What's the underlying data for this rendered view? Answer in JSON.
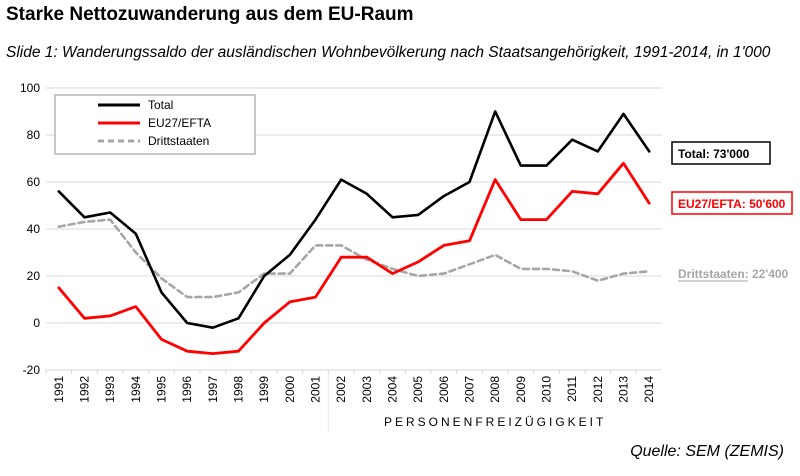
{
  "title": "Starke Nettozuwanderung aus dem EU-Raum",
  "subtitle": "Slide 1: Wanderungssaldo der ausländischen Wohnbevölkerung nach Staatsangehörigkeit, 1991-2014, in 1'000",
  "source": "Quelle: SEM (ZEMIS)",
  "colors": {
    "total": "#000000",
    "eu": "#ff0000",
    "dritt": "#a6a6a6",
    "grid": "#d9d9d9",
    "band": "#e6e6e6"
  },
  "chart_data": {
    "type": "line",
    "x": [
      "1991",
      "1992",
      "1993",
      "1994",
      "1995",
      "1996",
      "1997",
      "1998",
      "1999",
      "2000",
      "2001",
      "2002",
      "2003",
      "2004",
      "2005",
      "2006",
      "2007",
      "2008",
      "2009",
      "2010",
      "2011",
      "2012",
      "2013",
      "2014"
    ],
    "ylim": [
      -20,
      100
    ],
    "yticks": [
      "-20",
      "0",
      "20",
      "40",
      "60",
      "80",
      "100"
    ],
    "grid": true,
    "legend_placement": "top-left",
    "series": [
      {
        "name": "Total",
        "style": "solid",
        "values": [
          56,
          45,
          47,
          38,
          13,
          0,
          -2,
          2,
          20,
          29,
          44,
          61,
          55,
          45,
          46,
          54,
          60,
          90,
          67,
          67,
          78,
          73,
          89,
          73
        ]
      },
      {
        "name": "EU27/EFTA",
        "style": "solid",
        "values": [
          15,
          2,
          3,
          7,
          -7,
          -12,
          -13,
          -12,
          0,
          9,
          11,
          28,
          28,
          21,
          26,
          33,
          35,
          61,
          44,
          44,
          56,
          55,
          68,
          51
        ]
      },
      {
        "name": "Drittstaaten",
        "style": "dashed",
        "values": [
          41,
          43,
          44,
          30,
          19,
          11,
          11,
          13,
          21,
          21,
          33,
          33,
          27,
          23,
          20,
          21,
          25,
          29,
          23,
          23,
          22,
          18,
          21,
          22
        ]
      }
    ],
    "end_labels": [
      "Total: 73'000",
      "EU27/EFTA: 50'600",
      "Drittstaaten: 22'400"
    ],
    "band_label": "PERSONENFREIZÜGIGKEIT",
    "band_start": "2002"
  }
}
